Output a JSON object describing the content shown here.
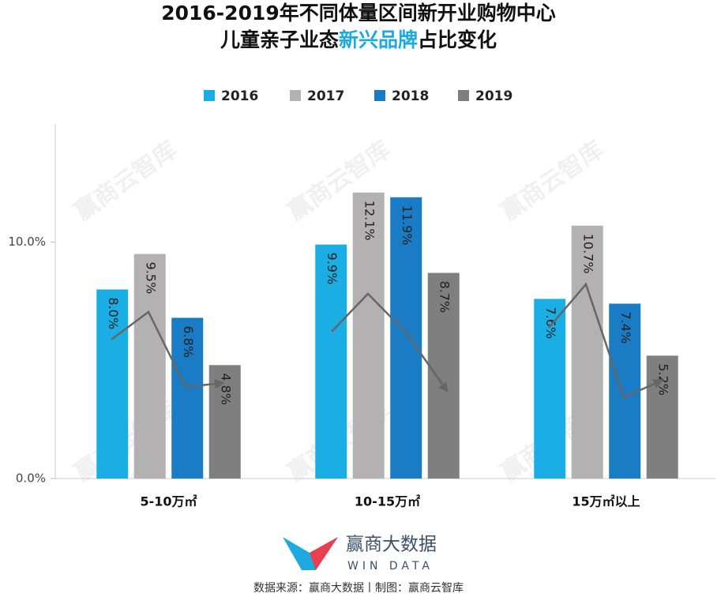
{
  "chart_data": {
    "type": "bar",
    "title": {
      "line1": "2016-2019年不同体量区间新开业购物中心",
      "line2": [
        "儿童亲子业态",
        "新兴品牌",
        "占比变化"
      ]
    },
    "categories": [
      "5-10万㎡",
      "10-15万㎡",
      "15万㎡以上"
    ],
    "series": [
      {
        "name": "2016",
        "color": "#1aaee5",
        "values": [
          8.0,
          9.9,
          7.6
        ],
        "value_labels": [
          "8.0%",
          "9.9%",
          "7.6%"
        ]
      },
      {
        "name": "2017",
        "color": "#b3b1b2",
        "values": [
          9.5,
          12.1,
          10.7
        ],
        "value_labels": [
          "9.5%",
          "12.1%",
          "10.7%"
        ]
      },
      {
        "name": "2018",
        "color": "#1a7cc4",
        "values": [
          6.8,
          11.9,
          7.4
        ],
        "value_labels": [
          "6.8%",
          "11.9%",
          "7.4%"
        ]
      },
      {
        "name": "2019",
        "color": "#7f7f7f",
        "values": [
          4.8,
          8.7,
          5.2
        ],
        "value_labels": [
          "4.8%",
          "8.7%",
          "5.2%"
        ]
      }
    ],
    "ylim": [
      0,
      15
    ],
    "yticks": [
      {
        "value": 0,
        "label": "0.0%"
      },
      {
        "value": 10,
        "label": "10.0%"
      }
    ],
    "legend": "top",
    "watermark": "赢商云智库",
    "logo": {
      "name": "赢商大数据",
      "sub": "WIN DATA"
    },
    "source": "数据来源：赢商大数据丨制图：赢商云智库"
  }
}
